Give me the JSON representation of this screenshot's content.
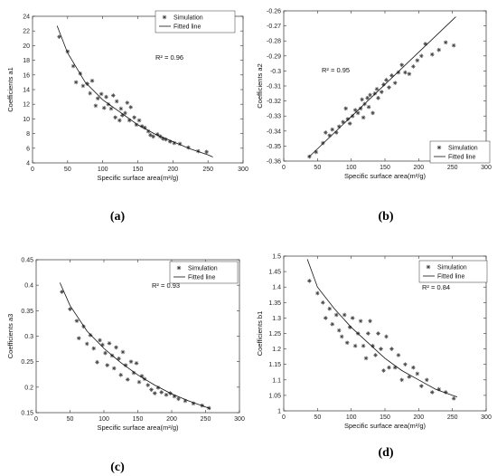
{
  "chart_data": [
    {
      "id": "a",
      "type": "scatter",
      "panel_label": "(a)",
      "xlabel": "Specific surface area(m²/g)",
      "ylabel": "Coefficients a1",
      "r2": "R² = 0.96",
      "xlim": [
        0,
        300
      ],
      "ylim": [
        4,
        24
      ],
      "xticks": [
        0,
        50,
        100,
        150,
        200,
        250,
        300
      ],
      "yticks": [
        4,
        6,
        8,
        10,
        12,
        14,
        16,
        18,
        20,
        22,
        24
      ],
      "legend": [
        "Simulation",
        "Fitted line"
      ],
      "legend_position": "top-right",
      "series": [
        {
          "name": "Simulation",
          "kind": "markers",
          "points": [
            [
              38,
              21.2
            ],
            [
              50,
              19.2
            ],
            [
              58,
              17.2
            ],
            [
              62,
              15.0
            ],
            [
              68,
              16.2
            ],
            [
              72,
              14.5
            ],
            [
              78,
              14.8
            ],
            [
              82,
              13.5
            ],
            [
              85,
              15.2
            ],
            [
              90,
              11.8
            ],
            [
              93,
              12.8
            ],
            [
              98,
              13.4
            ],
            [
              102,
              11.5
            ],
            [
              105,
              13.0
            ],
            [
              108,
              12.0
            ],
            [
              112,
              11.4
            ],
            [
              115,
              13.2
            ],
            [
              118,
              10.2
            ],
            [
              120,
              12.4
            ],
            [
              124,
              9.8
            ],
            [
              126,
              11.4
            ],
            [
              128,
              10.5
            ],
            [
              132,
              10.8
            ],
            [
              135,
              12.2
            ],
            [
              138,
              9.8
            ],
            [
              140,
              11.6
            ],
            [
              145,
              10.2
            ],
            [
              148,
              9.2
            ],
            [
              152,
              9.8
            ],
            [
              156,
              9.0
            ],
            [
              160,
              8.8
            ],
            [
              165,
              8.3
            ],
            [
              168,
              7.8
            ],
            [
              172,
              7.6
            ],
            [
              178,
              7.9
            ],
            [
              182,
              7.6
            ],
            [
              186,
              7.3
            ],
            [
              190,
              7.2
            ],
            [
              196,
              6.9
            ],
            [
              202,
              6.7
            ],
            [
              210,
              6.6
            ],
            [
              222,
              6.1
            ],
            [
              236,
              5.6
            ],
            [
              248,
              5.5
            ]
          ]
        },
        {
          "name": "Fitted line",
          "kind": "line",
          "points": [
            [
              35,
              22.7
            ],
            [
              50,
              19.0
            ],
            [
              75,
              15.0
            ],
            [
              100,
              12.6
            ],
            [
              125,
              10.9
            ],
            [
              150,
              9.2
            ],
            [
              175,
              7.9
            ],
            [
              200,
              6.9
            ],
            [
              225,
              5.9
            ],
            [
              250,
              5.1
            ],
            [
              257,
              4.8
            ]
          ]
        }
      ]
    },
    {
      "id": "b",
      "type": "scatter",
      "panel_label": "(b)",
      "xlabel": "Specific surface area(m²/g)",
      "ylabel": "Coefficients a2",
      "r2": "R² = 0.95",
      "xlim": [
        0,
        300
      ],
      "ylim": [
        -0.36,
        -0.26
      ],
      "xticks": [
        0,
        50,
        100,
        150,
        200,
        250,
        300
      ],
      "yticks": [
        -0.36,
        -0.35,
        -0.34,
        -0.33,
        -0.32,
        -0.31,
        -0.3,
        -0.29,
        -0.28,
        -0.27,
        -0.26
      ],
      "legend": [
        "Simulation",
        "Fitted line"
      ],
      "legend_position": "bottom-right",
      "series": [
        {
          "name": "Simulation",
          "kind": "markers",
          "points": [
            [
              38,
              -0.357
            ],
            [
              48,
              -0.354
            ],
            [
              58,
              -0.348
            ],
            [
              62,
              -0.341
            ],
            [
              68,
              -0.343
            ],
            [
              72,
              -0.339
            ],
            [
              78,
              -0.341
            ],
            [
              82,
              -0.337
            ],
            [
              88,
              -0.334
            ],
            [
              92,
              -0.325
            ],
            [
              95,
              -0.332
            ],
            [
              98,
              -0.335
            ],
            [
              102,
              -0.33
            ],
            [
              106,
              -0.326
            ],
            [
              110,
              -0.328
            ],
            [
              114,
              -0.325
            ],
            [
              116,
              -0.319
            ],
            [
              118,
              -0.331
            ],
            [
              120,
              -0.322
            ],
            [
              124,
              -0.318
            ],
            [
              126,
              -0.324
            ],
            [
              128,
              -0.316
            ],
            [
              132,
              -0.328
            ],
            [
              135,
              -0.315
            ],
            [
              138,
              -0.312
            ],
            [
              140,
              -0.318
            ],
            [
              145,
              -0.314
            ],
            [
              148,
              -0.309
            ],
            [
              152,
              -0.306
            ],
            [
              156,
              -0.311
            ],
            [
              160,
              -0.303
            ],
            [
              165,
              -0.308
            ],
            [
              170,
              -0.301
            ],
            [
              175,
              -0.296
            ],
            [
              180,
              -0.301
            ],
            [
              186,
              -0.302
            ],
            [
              192,
              -0.297
            ],
            [
              198,
              -0.293
            ],
            [
              204,
              -0.29
            ],
            [
              210,
              -0.282
            ],
            [
              220,
              -0.289
            ],
            [
              230,
              -0.286
            ],
            [
              240,
              -0.281
            ],
            [
              252,
              -0.283
            ]
          ]
        },
        {
          "name": "Fitted line",
          "kind": "line",
          "points": [
            [
              38,
              -0.357
            ],
            [
              255,
              -0.264
            ]
          ]
        }
      ]
    },
    {
      "id": "c",
      "type": "scatter",
      "panel_label": "(c)",
      "xlabel": "Specific surface area(m²/g)",
      "ylabel": "Coefficients a3",
      "r2": "R² = 0.93",
      "xlim": [
        0,
        300
      ],
      "ylim": [
        0.15,
        0.45
      ],
      "xticks": [
        0,
        50,
        100,
        150,
        200,
        250,
        300
      ],
      "yticks": [
        0.15,
        0.2,
        0.25,
        0.3,
        0.35,
        0.4,
        0.45
      ],
      "legend": [
        "Simulation",
        "Fitted line"
      ],
      "legend_position": "top-right",
      "series": [
        {
          "name": "Simulation",
          "kind": "markers",
          "points": [
            [
              38,
              0.387
            ],
            [
              50,
              0.353
            ],
            [
              60,
              0.33
            ],
            [
              63,
              0.296
            ],
            [
              70,
              0.319
            ],
            [
              75,
              0.285
            ],
            [
              80,
              0.302
            ],
            [
              85,
              0.276
            ],
            [
              90,
              0.249
            ],
            [
              94,
              0.292
            ],
            [
              98,
              0.283
            ],
            [
              102,
              0.267
            ],
            [
              105,
              0.243
            ],
            [
              108,
              0.286
            ],
            [
              112,
              0.262
            ],
            [
              115,
              0.237
            ],
            [
              118,
              0.278
            ],
            [
              122,
              0.256
            ],
            [
              125,
              0.224
            ],
            [
              128,
              0.269
            ],
            [
              132,
              0.243
            ],
            [
              135,
              0.215
            ],
            [
              140,
              0.25
            ],
            [
              144,
              0.228
            ],
            [
              148,
              0.247
            ],
            [
              152,
              0.21
            ],
            [
              156,
              0.222
            ],
            [
              160,
              0.216
            ],
            [
              165,
              0.204
            ],
            [
              170,
              0.195
            ],
            [
              175,
              0.188
            ],
            [
              180,
              0.199
            ],
            [
              185,
              0.19
            ],
            [
              192,
              0.185
            ],
            [
              198,
              0.188
            ],
            [
              204,
              0.182
            ],
            [
              210,
              0.177
            ],
            [
              220,
              0.173
            ],
            [
              232,
              0.168
            ],
            [
              245,
              0.164
            ],
            [
              255,
              0.159
            ]
          ]
        },
        {
          "name": "Fitted line",
          "kind": "line",
          "points": [
            [
              35,
              0.405
            ],
            [
              50,
              0.36
            ],
            [
              75,
              0.31
            ],
            [
              100,
              0.276
            ],
            [
              125,
              0.248
            ],
            [
              150,
              0.224
            ],
            [
              175,
              0.204
            ],
            [
              200,
              0.187
            ],
            [
              225,
              0.173
            ],
            [
              250,
              0.161
            ],
            [
              257,
              0.158
            ]
          ]
        }
      ]
    },
    {
      "id": "d",
      "type": "scatter",
      "panel_label": "(d)",
      "xlabel": "Specific surface area(m²/g)",
      "ylabel": "Coefficients b1",
      "r2": "R² = 0.84",
      "xlim": [
        0,
        300
      ],
      "ylim": [
        1.0,
        1.5
      ],
      "xticks": [
        0,
        50,
        100,
        150,
        200,
        250,
        300
      ],
      "yticks": [
        1,
        1.05,
        1.1,
        1.15,
        1.2,
        1.25,
        1.3,
        1.35,
        1.4,
        1.45,
        1.5
      ],
      "legend": [
        "Simulation",
        "Fitted line"
      ],
      "legend_position": "top-right",
      "series": [
        {
          "name": "Simulation",
          "kind": "markers",
          "points": [
            [
              38,
              1.42
            ],
            [
              50,
              1.38
            ],
            [
              58,
              1.35
            ],
            [
              62,
              1.3
            ],
            [
              68,
              1.33
            ],
            [
              72,
              1.28
            ],
            [
              78,
              1.31
            ],
            [
              82,
              1.26
            ],
            [
              86,
              1.24
            ],
            [
              90,
              1.31
            ],
            [
              94,
              1.22
            ],
            [
              98,
              1.27
            ],
            [
              102,
              1.3
            ],
            [
              106,
              1.21
            ],
            [
              110,
              1.25
            ],
            [
              114,
              1.29
            ],
            [
              118,
              1.21
            ],
            [
              122,
              1.17
            ],
            [
              125,
              1.25
            ],
            [
              128,
              1.29
            ],
            [
              132,
              1.21
            ],
            [
              136,
              1.18
            ],
            [
              140,
              1.25
            ],
            [
              144,
              1.2
            ],
            [
              148,
              1.13
            ],
            [
              152,
              1.24
            ],
            [
              156,
              1.14
            ],
            [
              160,
              1.2
            ],
            [
              165,
              1.14
            ],
            [
              170,
              1.18
            ],
            [
              175,
              1.1
            ],
            [
              180,
              1.15
            ],
            [
              186,
              1.11
            ],
            [
              192,
              1.14
            ],
            [
              198,
              1.12
            ],
            [
              204,
              1.08
            ],
            [
              212,
              1.1
            ],
            [
              220,
              1.06
            ],
            [
              230,
              1.07
            ],
            [
              240,
              1.06
            ],
            [
              252,
              1.04
            ]
          ]
        },
        {
          "name": "Fitted line",
          "kind": "line",
          "points": [
            [
              35,
              1.49
            ],
            [
              50,
              1.4
            ],
            [
              75,
              1.33
            ],
            [
              100,
              1.27
            ],
            [
              125,
              1.22
            ],
            [
              150,
              1.17
            ],
            [
              175,
              1.13
            ],
            [
              200,
              1.1
            ],
            [
              225,
              1.07
            ],
            [
              250,
              1.05
            ],
            [
              257,
              1.045
            ]
          ]
        }
      ]
    }
  ]
}
